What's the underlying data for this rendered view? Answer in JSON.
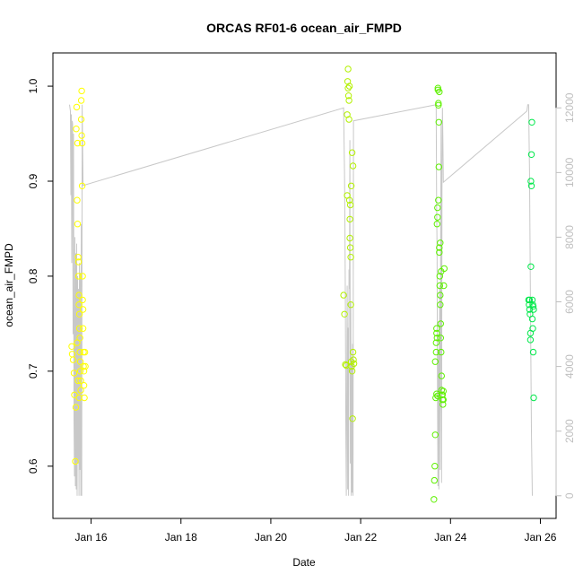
{
  "chart_data": {
    "type": "scatter",
    "title": "ORCAS RF01-6 ocean_air_FMPD",
    "xlabel": "Date",
    "ylabel": "ocean_air_FMPD",
    "x_ticks": [
      "Jan 16",
      "Jan 18",
      "Jan 20",
      "Jan 22",
      "Jan 24",
      "Jan 26"
    ],
    "x_tick_days": [
      16,
      18,
      20,
      22,
      24,
      26
    ],
    "xlim": [
      15.15,
      26.35
    ],
    "ylim": [
      0.545,
      1.035
    ],
    "y_ticks": [
      0.6,
      0.7,
      0.8,
      0.9,
      1.0
    ],
    "y2_ticks": [
      0,
      2000,
      4000,
      6000,
      8000,
      10000,
      12000
    ],
    "y2lim": [
      -700,
      13700
    ],
    "y2_color": "#bfbfbf",
    "grid": false,
    "series": [
      {
        "color": "#ffff00",
        "points": [
          [
            15.57,
            0.726
          ],
          [
            15.58,
            0.718
          ],
          [
            15.6,
            0.712
          ],
          [
            15.62,
            0.698
          ],
          [
            15.63,
            0.675
          ],
          [
            15.65,
            0.605
          ],
          [
            15.66,
            0.662
          ],
          [
            15.67,
            0.955
          ],
          [
            15.68,
            0.978
          ],
          [
            15.69,
            0.88
          ],
          [
            15.7,
            0.94
          ],
          [
            15.7,
            0.855
          ],
          [
            15.71,
            0.82
          ],
          [
            15.72,
            0.815
          ],
          [
            15.72,
            0.8
          ],
          [
            15.73,
            0.78
          ],
          [
            15.73,
            0.77
          ],
          [
            15.74,
            0.76
          ],
          [
            15.74,
            0.745
          ],
          [
            15.75,
            0.735
          ],
          [
            15.75,
            0.72
          ],
          [
            15.76,
            0.71
          ],
          [
            15.76,
            0.7
          ],
          [
            15.77,
            0.69
          ],
          [
            15.77,
            0.68
          ],
          [
            15.78,
            0.965
          ],
          [
            15.78,
            0.985
          ],
          [
            15.79,
            0.995
          ],
          [
            15.79,
            0.948
          ],
          [
            15.8,
            0.94
          ],
          [
            15.8,
            0.895
          ],
          [
            15.81,
            0.8
          ],
          [
            15.81,
            0.775
          ],
          [
            15.82,
            0.765
          ],
          [
            15.82,
            0.745
          ],
          [
            15.83,
            0.72
          ],
          [
            15.83,
            0.705
          ],
          [
            15.84,
            0.7
          ],
          [
            15.84,
            0.685
          ],
          [
            15.85,
            0.672
          ],
          [
            15.86,
            0.72
          ],
          [
            15.87,
            0.705
          ],
          [
            15.69,
            0.73
          ],
          [
            15.71,
            0.69
          ],
          [
            15.73,
            0.672
          ]
        ]
      },
      {
        "color": "#b3f000",
        "points": [
          [
            21.62,
            0.78
          ],
          [
            21.64,
            0.76
          ],
          [
            21.66,
            0.707
          ],
          [
            21.68,
            0.706
          ],
          [
            21.7,
            0.885
          ],
          [
            21.7,
            0.97
          ],
          [
            21.71,
            1.005
          ],
          [
            21.72,
            1.018
          ],
          [
            21.73,
            0.99
          ],
          [
            21.74,
            0.965
          ],
          [
            21.75,
            0.88
          ],
          [
            21.76,
            0.86
          ],
          [
            21.76,
            0.84
          ],
          [
            21.77,
            0.83
          ],
          [
            21.78,
            0.82
          ],
          [
            21.78,
            0.77
          ],
          [
            21.79,
            0.71
          ],
          [
            21.8,
            0.705
          ],
          [
            21.81,
            0.7
          ],
          [
            21.82,
            0.65
          ],
          [
            21.83,
            0.72
          ],
          [
            21.84,
            0.712
          ],
          [
            21.85,
            0.708
          ],
          [
            21.72,
            0.998
          ],
          [
            21.75,
            1.0
          ],
          [
            21.77,
            0.875
          ],
          [
            21.79,
            0.895
          ],
          [
            21.81,
            0.93
          ],
          [
            21.83,
            0.916
          ],
          [
            21.74,
            0.985
          ]
        ]
      },
      {
        "color": "#5ef000",
        "points": [
          [
            23.63,
            0.565
          ],
          [
            23.64,
            0.585
          ],
          [
            23.65,
            0.6
          ],
          [
            23.66,
            0.633
          ],
          [
            23.67,
            0.672
          ],
          [
            23.68,
            0.72
          ],
          [
            23.68,
            0.73
          ],
          [
            23.69,
            0.745
          ],
          [
            23.69,
            0.74
          ],
          [
            23.7,
            0.735
          ],
          [
            23.7,
            0.855
          ],
          [
            23.71,
            0.862
          ],
          [
            23.71,
            0.872
          ],
          [
            23.72,
            0.998
          ],
          [
            23.72,
            0.996
          ],
          [
            23.73,
            0.982
          ],
          [
            23.73,
            0.98
          ],
          [
            23.74,
            0.962
          ],
          [
            23.74,
            0.915
          ],
          [
            23.75,
            0.83
          ],
          [
            23.75,
            0.825
          ],
          [
            23.76,
            0.8
          ],
          [
            23.76,
            0.79
          ],
          [
            23.77,
            0.78
          ],
          [
            23.77,
            0.77
          ],
          [
            23.78,
            0.75
          ],
          [
            23.78,
            0.735
          ],
          [
            23.79,
            0.72
          ],
          [
            23.8,
            0.695
          ],
          [
            23.8,
            0.68
          ],
          [
            23.81,
            0.675
          ],
          [
            23.82,
            0.67
          ],
          [
            23.83,
            0.665
          ],
          [
            23.84,
            0.67
          ],
          [
            23.85,
            0.79
          ],
          [
            23.86,
            0.808
          ],
          [
            23.75,
            0.994
          ],
          [
            23.77,
            0.835
          ],
          [
            23.66,
            0.71
          ],
          [
            23.69,
            0.676
          ],
          [
            23.71,
            0.674
          ],
          [
            23.73,
            0.88
          ],
          [
            23.79,
            0.805
          ],
          [
            23.82,
            0.675
          ],
          [
            23.84,
            0.679
          ]
        ]
      },
      {
        "color": "#00e84a",
        "points": [
          [
            25.75,
            0.77
          ],
          [
            25.76,
            0.765
          ],
          [
            25.77,
            0.76
          ],
          [
            25.78,
            0.74
          ],
          [
            25.78,
            0.733
          ],
          [
            25.79,
            0.81
          ],
          [
            25.79,
            0.9
          ],
          [
            25.8,
            0.895
          ],
          [
            25.8,
            0.928
          ],
          [
            25.81,
            0.962
          ],
          [
            25.82,
            0.775
          ],
          [
            25.82,
            0.755
          ],
          [
            25.83,
            0.745
          ],
          [
            25.84,
            0.72
          ],
          [
            25.85,
            0.672
          ],
          [
            25.74,
            0.775
          ],
          [
            25.76,
            0.775
          ],
          [
            25.83,
            0.77
          ],
          [
            25.84,
            0.768
          ],
          [
            25.85,
            0.765
          ]
        ]
      }
    ],
    "altitude_line": {
      "color": "#c8c8c8",
      "axis": "y2",
      "points": [
        [
          15.52,
          12100
        ],
        [
          15.53,
          12000
        ],
        [
          15.54,
          11900
        ],
        [
          15.55,
          9300
        ],
        [
          15.56,
          11800
        ],
        [
          15.57,
          7200
        ],
        [
          15.58,
          11600
        ],
        [
          15.59,
          11500
        ],
        [
          15.6,
          5000
        ],
        [
          15.61,
          11200
        ],
        [
          15.62,
          2400
        ],
        [
          15.63,
          600
        ],
        [
          15.64,
          8000
        ],
        [
          15.65,
          300
        ],
        [
          15.66,
          7500
        ],
        [
          15.67,
          200
        ],
        [
          15.68,
          7800
        ],
        [
          15.69,
          0
        ],
        [
          15.7,
          6800
        ],
        [
          15.71,
          1000
        ],
        [
          15.72,
          6400
        ],
        [
          15.73,
          0
        ],
        [
          15.74,
          7200
        ],
        [
          15.75,
          800
        ],
        [
          15.76,
          6900
        ],
        [
          15.77,
          0
        ],
        [
          15.78,
          8400
        ],
        [
          15.79,
          0
        ],
        [
          15.8,
          12100
        ],
        [
          15.82,
          9600
        ],
        [
          21.62,
          12000
        ],
        [
          21.63,
          11000
        ],
        [
          21.64,
          10000
        ],
        [
          21.65,
          8300
        ],
        [
          21.66,
          5800
        ],
        [
          21.67,
          2000
        ],
        [
          21.68,
          0
        ],
        [
          21.69,
          3300
        ],
        [
          21.7,
          6500
        ],
        [
          21.71,
          200
        ],
        [
          21.72,
          5200
        ],
        [
          21.73,
          0
        ],
        [
          21.74,
          7000
        ],
        [
          21.75,
          6400
        ],
        [
          21.76,
          11000
        ],
        [
          21.77,
          1000
        ],
        [
          21.78,
          6000
        ],
        [
          21.79,
          0
        ],
        [
          21.8,
          4200
        ],
        [
          21.81,
          100
        ],
        [
          21.82,
          4700
        ],
        [
          21.83,
          0
        ],
        [
          21.84,
          11600
        ],
        [
          23.68,
          12100
        ],
        [
          23.69,
          9000
        ],
        [
          23.7,
          7600
        ],
        [
          23.71,
          3000
        ],
        [
          23.72,
          300
        ],
        [
          23.73,
          4500
        ],
        [
          23.74,
          200
        ],
        [
          23.75,
          4000
        ],
        [
          23.76,
          6500
        ],
        [
          23.77,
          800
        ],
        [
          23.78,
          8000
        ],
        [
          23.79,
          11600
        ],
        [
          23.8,
          400
        ],
        [
          23.81,
          9800
        ],
        [
          23.82,
          12000
        ],
        [
          23.83,
          11000
        ],
        [
          23.84,
          9700
        ],
        [
          25.7,
          11900
        ],
        [
          25.72,
          12100
        ],
        [
          25.74,
          12100
        ],
        [
          25.76,
          10000
        ],
        [
          25.78,
          6000
        ],
        [
          25.8,
          2000
        ],
        [
          25.82,
          0
        ]
      ]
    }
  }
}
